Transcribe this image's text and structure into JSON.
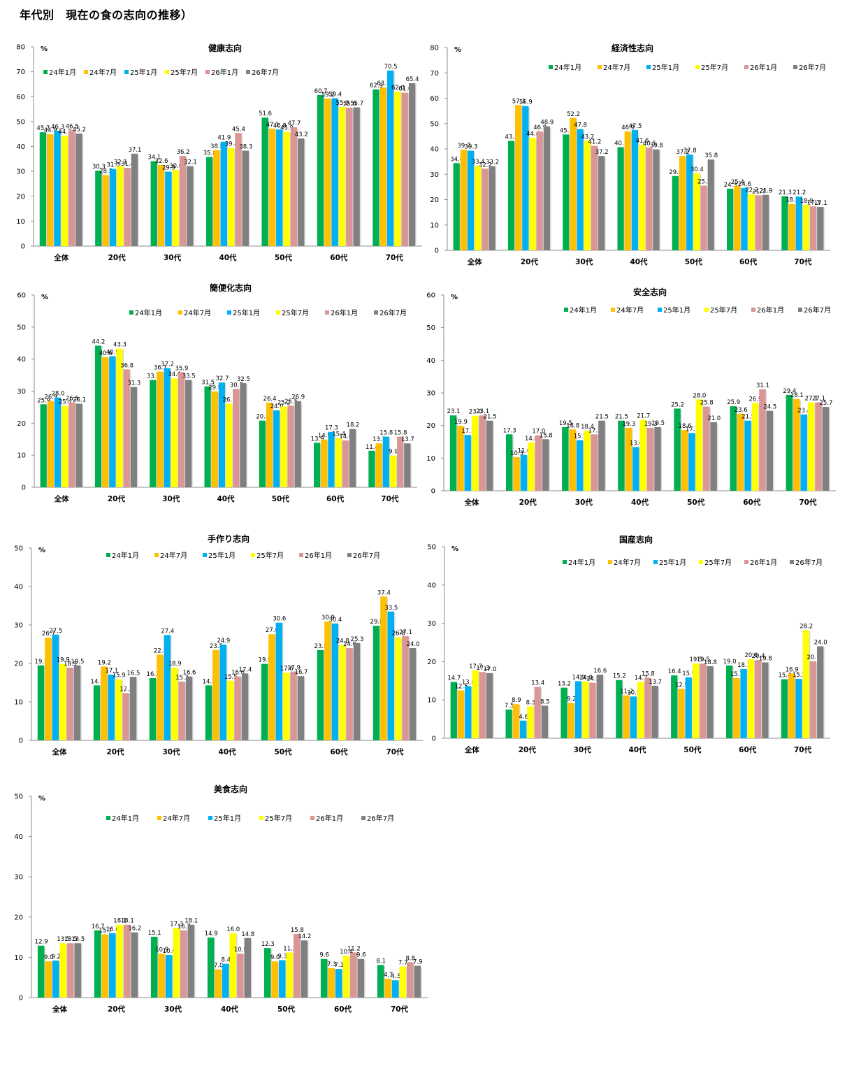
{
  "page": {
    "title": "年代別　現在の食の志向の推移）"
  },
  "legend": {
    "series_names": [
      "24年1月",
      "24年7月",
      "25年1月",
      "25年7月",
      "26年1月",
      "26年7月"
    ],
    "colors": [
      "#00B050",
      "#FFC000",
      "#00B0F0",
      "#FFFF00",
      "#DA9694",
      "#808080"
    ]
  },
  "chart_data": [
    {
      "type": "bar",
      "title": "健康志向",
      "ylabel": "%",
      "xlabel": "",
      "ylim": [
        0,
        80
      ],
      "yticks": [
        0,
        10,
        20,
        30,
        40,
        50,
        60,
        70,
        80
      ],
      "grid": false,
      "legend_position": "top-left",
      "categories": [
        "全体",
        "20代",
        "30代",
        "40代",
        "50代",
        "60代",
        "70代"
      ],
      "series": [
        {
          "name": "24年1月",
          "values": [
            45.7,
            30.3,
            34.1,
            35.8,
            51.6,
            60.7,
            62.9
          ]
        },
        {
          "name": "24年7月",
          "values": [
            44.9,
            28.5,
            32.6,
            38.5,
            47.1,
            59.2,
            63.7
          ]
        },
        {
          "name": "25年1月",
          "values": [
            46.3,
            31.0,
            29.9,
            41.9,
            46.8,
            59.4,
            70.5
          ]
        },
        {
          "name": "25年7月",
          "values": [
            44.3,
            32.1,
            30.6,
            39.4,
            45.9,
            55.9,
            62.0
          ]
        },
        {
          "name": "26年1月",
          "values": [
            46.5,
            31.4,
            36.2,
            45.4,
            47.7,
            55.6,
            61.6
          ]
        },
        {
          "name": "26年7月",
          "values": [
            45.2,
            37.1,
            32.1,
            38.3,
            43.2,
            55.7,
            65.4
          ]
        }
      ]
    },
    {
      "type": "bar",
      "title": "経済性志向",
      "ylabel": "%",
      "xlabel": "",
      "ylim": [
        0,
        80
      ],
      "yticks": [
        0,
        10,
        20,
        30,
        40,
        50,
        60,
        70,
        80
      ],
      "grid": false,
      "legend_position": "top-right",
      "categories": [
        "全体",
        "20代",
        "30代",
        "40代",
        "50代",
        "60代",
        "70代"
      ],
      "series": [
        {
          "name": "24年1月",
          "values": [
            34.4,
            43.2,
            45.7,
            40.7,
            29.3,
            24.3,
            21.3
          ]
        },
        {
          "name": "24年7月",
          "values": [
            39.7,
            57.3,
            52.2,
            46.9,
            37.2,
            25.4,
            18.3
          ]
        },
        {
          "name": "25年1月",
          "values": [
            39.3,
            56.9,
            47.8,
            47.5,
            37.8,
            24.6,
            21.2
          ]
        },
        {
          "name": "25年7月",
          "values": [
            33.4,
            44.4,
            43.2,
            41.6,
            30.4,
            22.2,
            18.0
          ]
        },
        {
          "name": "26年1月",
          "values": [
            32.2,
            46.9,
            41.2,
            40.5,
            25.5,
            21.7,
            17.3
          ]
        },
        {
          "name": "26年7月",
          "values": [
            33.2,
            48.9,
            37.2,
            39.8,
            35.8,
            21.9,
            17.1
          ]
        }
      ]
    },
    {
      "type": "bar",
      "title": "簡便化志向",
      "ylabel": "%",
      "xlabel": "",
      "ylim": [
        0,
        60
      ],
      "yticks": [
        0,
        10,
        20,
        30,
        40,
        50,
        60
      ],
      "grid": false,
      "legend_position": "top-right",
      "categories": [
        "全体",
        "20代",
        "30代",
        "40代",
        "50代",
        "60代",
        "70代"
      ],
      "series": [
        {
          "name": "24年1月",
          "values": [
            25.9,
            44.2,
            33.5,
            31.5,
            20.8,
            13.9,
            11.4
          ]
        },
        {
          "name": "24年7月",
          "values": [
            26.9,
            40.6,
            36.1,
            29.9,
            26.4,
            14.9,
            13.7
          ]
        },
        {
          "name": "25年1月",
          "values": [
            28.0,
            40.9,
            37.2,
            32.7,
            24.0,
            17.3,
            15.8
          ]
        },
        {
          "name": "25年7月",
          "values": [
            25.4,
            43.3,
            34.0,
            26.1,
            25.2,
            15.4,
            9.9
          ]
        },
        {
          "name": "26年1月",
          "values": [
            26.5,
            36.8,
            35.9,
            30.7,
            25.5,
            14.6,
            15.8
          ]
        },
        {
          "name": "26年7月",
          "values": [
            26.1,
            31.3,
            33.5,
            32.5,
            26.9,
            18.2,
            13.7
          ]
        }
      ]
    },
    {
      "type": "bar",
      "title": "安全志向",
      "ylabel": "%",
      "xlabel": "",
      "ylim": [
        0,
        60
      ],
      "yticks": [
        0,
        10,
        20,
        30,
        40,
        50,
        60
      ],
      "grid": false,
      "legend_position": "top-right",
      "categories": [
        "全体",
        "20代",
        "30代",
        "40代",
        "50代",
        "60代",
        "70代"
      ],
      "series": [
        {
          "name": "24年1月",
          "values": [
            23.1,
            17.3,
            19.5,
            21.5,
            25.2,
            25.9,
            29.4
          ]
        },
        {
          "name": "24年7月",
          "values": [
            19.9,
            10.3,
            18.8,
            19.3,
            18.6,
            23.6,
            28.1
          ]
        },
        {
          "name": "25年1月",
          "values": [
            17.1,
            11.0,
            15.5,
            13.4,
            17.7,
            21.5,
            23.4
          ]
        },
        {
          "name": "25年7月",
          "values": [
            23.0,
            14.8,
            18.4,
            21.7,
            28.0,
            26.9,
            27.1
          ]
        },
        {
          "name": "26年1月",
          "values": [
            23.1,
            17.0,
            17.3,
            19.3,
            25.8,
            31.1,
            27.1
          ]
        },
        {
          "name": "26年7月",
          "values": [
            21.5,
            15.8,
            21.5,
            19.5,
            21.0,
            24.5,
            25.7
          ]
        }
      ]
    },
    {
      "type": "bar",
      "title": "手作り志向",
      "ylabel": "%",
      "xlabel": "",
      "ylim": [
        0,
        50
      ],
      "yticks": [
        0,
        10,
        20,
        30,
        40,
        50
      ],
      "grid": false,
      "legend_position": "top",
      "categories": [
        "全体",
        "20代",
        "30代",
        "40代",
        "50代",
        "60代",
        "70代"
      ],
      "series": [
        {
          "name": "24年1月",
          "values": [
            19.5,
            14.3,
            16.2,
            14.3,
            19.9,
            23.5,
            29.8
          ]
        },
        {
          "name": "24年7月",
          "values": [
            26.7,
            19.2,
            22.3,
            23.5,
            27.6,
            30.9,
            37.4
          ]
        },
        {
          "name": "25年1月",
          "values": [
            27.5,
            17.1,
            27.4,
            24.9,
            30.6,
            30.4,
            33.5
          ]
        },
        {
          "name": "25年7月",
          "values": [
            19.9,
            15.9,
            18.9,
            15.5,
            17.6,
            24.8,
            26.8
          ]
        },
        {
          "name": "26年1月",
          "values": [
            18.9,
            12.3,
            15.3,
            16.6,
            17.9,
            24.0,
            27.1
          ]
        },
        {
          "name": "26年7月",
          "values": [
            19.5,
            16.5,
            16.6,
            17.4,
            16.7,
            25.3,
            24.0
          ]
        }
      ]
    },
    {
      "type": "bar",
      "title": "国産志向",
      "ylabel": "%",
      "xlabel": "",
      "ylim": [
        0,
        50
      ],
      "yticks": [
        0,
        10,
        20,
        30,
        40,
        50
      ],
      "grid": false,
      "legend_position": "top-right",
      "categories": [
        "全体",
        "20代",
        "30代",
        "40代",
        "50代",
        "60代",
        "70代"
      ],
      "series": [
        {
          "name": "24年1月",
          "values": [
            14.7,
            7.5,
            13.2,
            15.2,
            16.4,
            19.0,
            15.4
          ]
        },
        {
          "name": "24年7月",
          "values": [
            12.5,
            8.9,
            9.2,
            11.2,
            12.9,
            15.7,
            16.9
          ]
        },
        {
          "name": "25年1月",
          "values": [
            13.6,
            4.6,
            14.9,
            10.9,
            15.9,
            18.1,
            15.5
          ]
        },
        {
          "name": "25年7月",
          "values": [
            17.7,
            8.3,
            14.8,
            14.7,
            19.5,
            20.6,
            28.2
          ]
        },
        {
          "name": "26年1月",
          "values": [
            17.3,
            13.4,
            14.5,
            15.8,
            19.5,
            20.4,
            20.1
          ]
        },
        {
          "name": "26年7月",
          "values": [
            17.0,
            8.5,
            16.6,
            13.7,
            18.8,
            19.8,
            24.0
          ]
        }
      ]
    },
    {
      "type": "bar",
      "title": "美食志向",
      "ylabel": "%",
      "xlabel": "",
      "ylim": [
        0,
        50
      ],
      "yticks": [
        0,
        10,
        20,
        30,
        40,
        50
      ],
      "grid": false,
      "legend_position": "top",
      "categories": [
        "全体",
        "20代",
        "30代",
        "40代",
        "50代",
        "60代",
        "70代"
      ],
      "series": [
        {
          "name": "24年1月",
          "values": [
            12.9,
            16.7,
            15.1,
            14.9,
            12.3,
            9.6,
            8.1
          ]
        },
        {
          "name": "24年7月",
          "values": [
            9.0,
            15.7,
            10.9,
            7.0,
            9.0,
            7.3,
            4.7
          ]
        },
        {
          "name": "25年1月",
          "values": [
            9.2,
            16.0,
            10.6,
            8.4,
            9.3,
            7.1,
            4.3
          ]
        },
        {
          "name": "25年7月",
          "values": [
            13.5,
            18.1,
            17.3,
            16.0,
            11.2,
            10.4,
            7.7
          ]
        },
        {
          "name": "26年1月",
          "values": [
            13.5,
            18.1,
            16.7,
            10.9,
            15.8,
            11.2,
            8.8
          ]
        },
        {
          "name": "26年7月",
          "values": [
            13.5,
            16.2,
            18.1,
            14.8,
            14.2,
            9.6,
            7.9
          ]
        }
      ]
    }
  ]
}
